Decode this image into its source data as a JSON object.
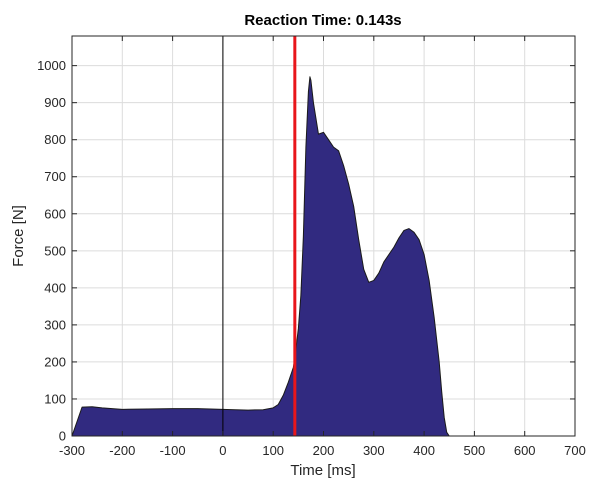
{
  "chart_data": {
    "type": "area",
    "title": "Reaction Time: 0.143s",
    "xlabel": "Time [ms]",
    "ylabel": "Force [N]",
    "xlim": [
      -300,
      700
    ],
    "ylim": [
      0,
      1080
    ],
    "x_ticks": [
      -300,
      -200,
      -100,
      0,
      100,
      200,
      300,
      400,
      500,
      600,
      700
    ],
    "y_ticks": [
      0,
      100,
      200,
      300,
      400,
      500,
      600,
      700,
      800,
      900,
      1000
    ],
    "grid": true,
    "series": [
      {
        "color": "#312A80",
        "x": [
          -300,
          -280,
          -260,
          -240,
          -200,
          -150,
          -100,
          -50,
          0,
          50,
          80,
          100,
          110,
          120,
          130,
          140,
          143,
          150,
          155,
          160,
          165,
          170,
          173,
          175,
          180,
          190,
          200,
          210,
          220,
          230,
          240,
          250,
          260,
          270,
          280,
          290,
          300,
          310,
          320,
          330,
          340,
          350,
          360,
          370,
          380,
          390,
          400,
          410,
          420,
          430,
          435,
          440,
          445,
          450
        ],
        "y": [
          0,
          78,
          79,
          76,
          72,
          73,
          74,
          74,
          72,
          70,
          71,
          76,
          85,
          110,
          145,
          185,
          210,
          290,
          380,
          540,
          780,
          930,
          970,
          960,
          900,
          815,
          820,
          800,
          780,
          770,
          730,
          680,
          620,
          530,
          450,
          415,
          420,
          440,
          470,
          490,
          510,
          535,
          555,
          560,
          550,
          530,
          490,
          420,
          320,
          200,
          120,
          50,
          10,
          0
        ]
      }
    ],
    "markers": [
      {
        "x": 0,
        "color": "#000000"
      },
      {
        "x": 143,
        "color": "#E8161B"
      }
    ]
  }
}
